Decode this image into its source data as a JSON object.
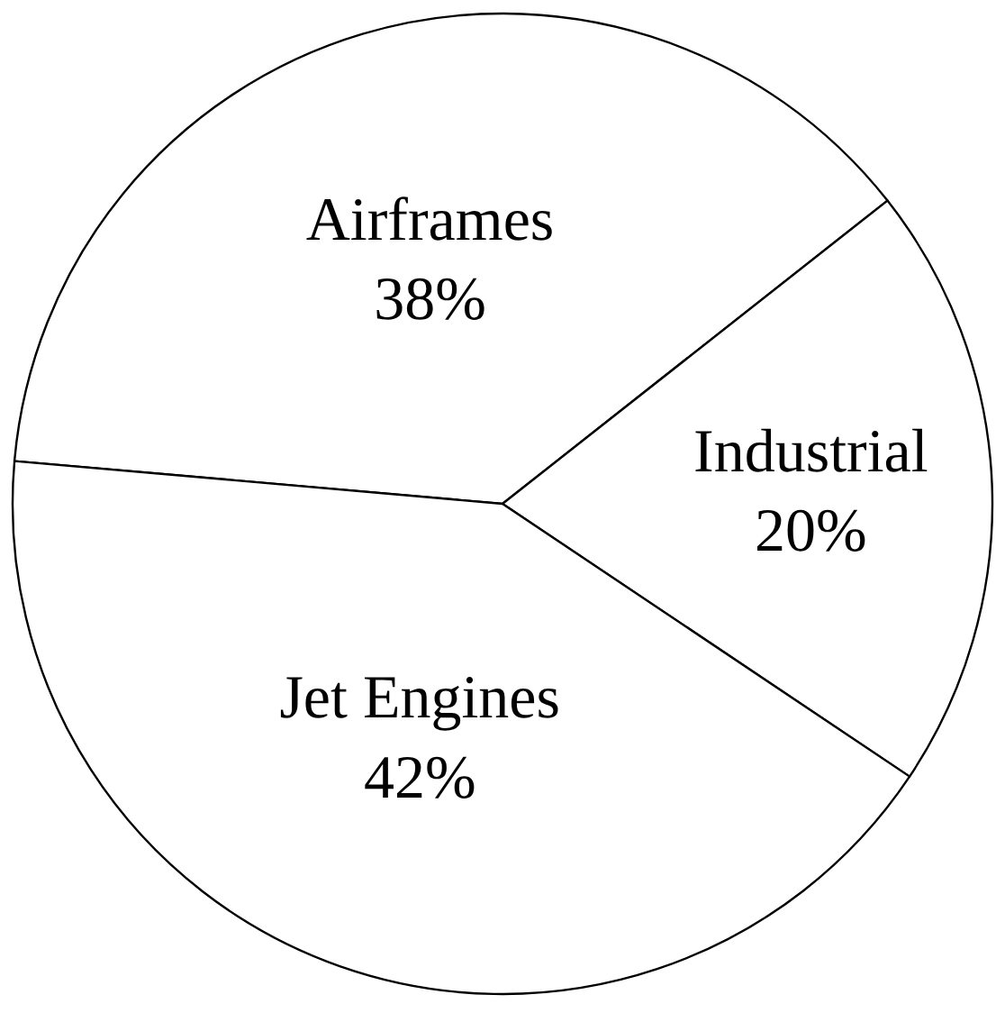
{
  "chart_data": {
    "type": "pie",
    "categories": [
      "Airframes",
      "Industrial",
      "Jet Engines"
    ],
    "values": [
      38,
      20,
      42
    ],
    "value_labels": [
      "38%",
      "20%",
      "42%"
    ],
    "colors": [
      "#ffffff",
      "#ffffff",
      "#ffffff"
    ],
    "legend": false
  }
}
